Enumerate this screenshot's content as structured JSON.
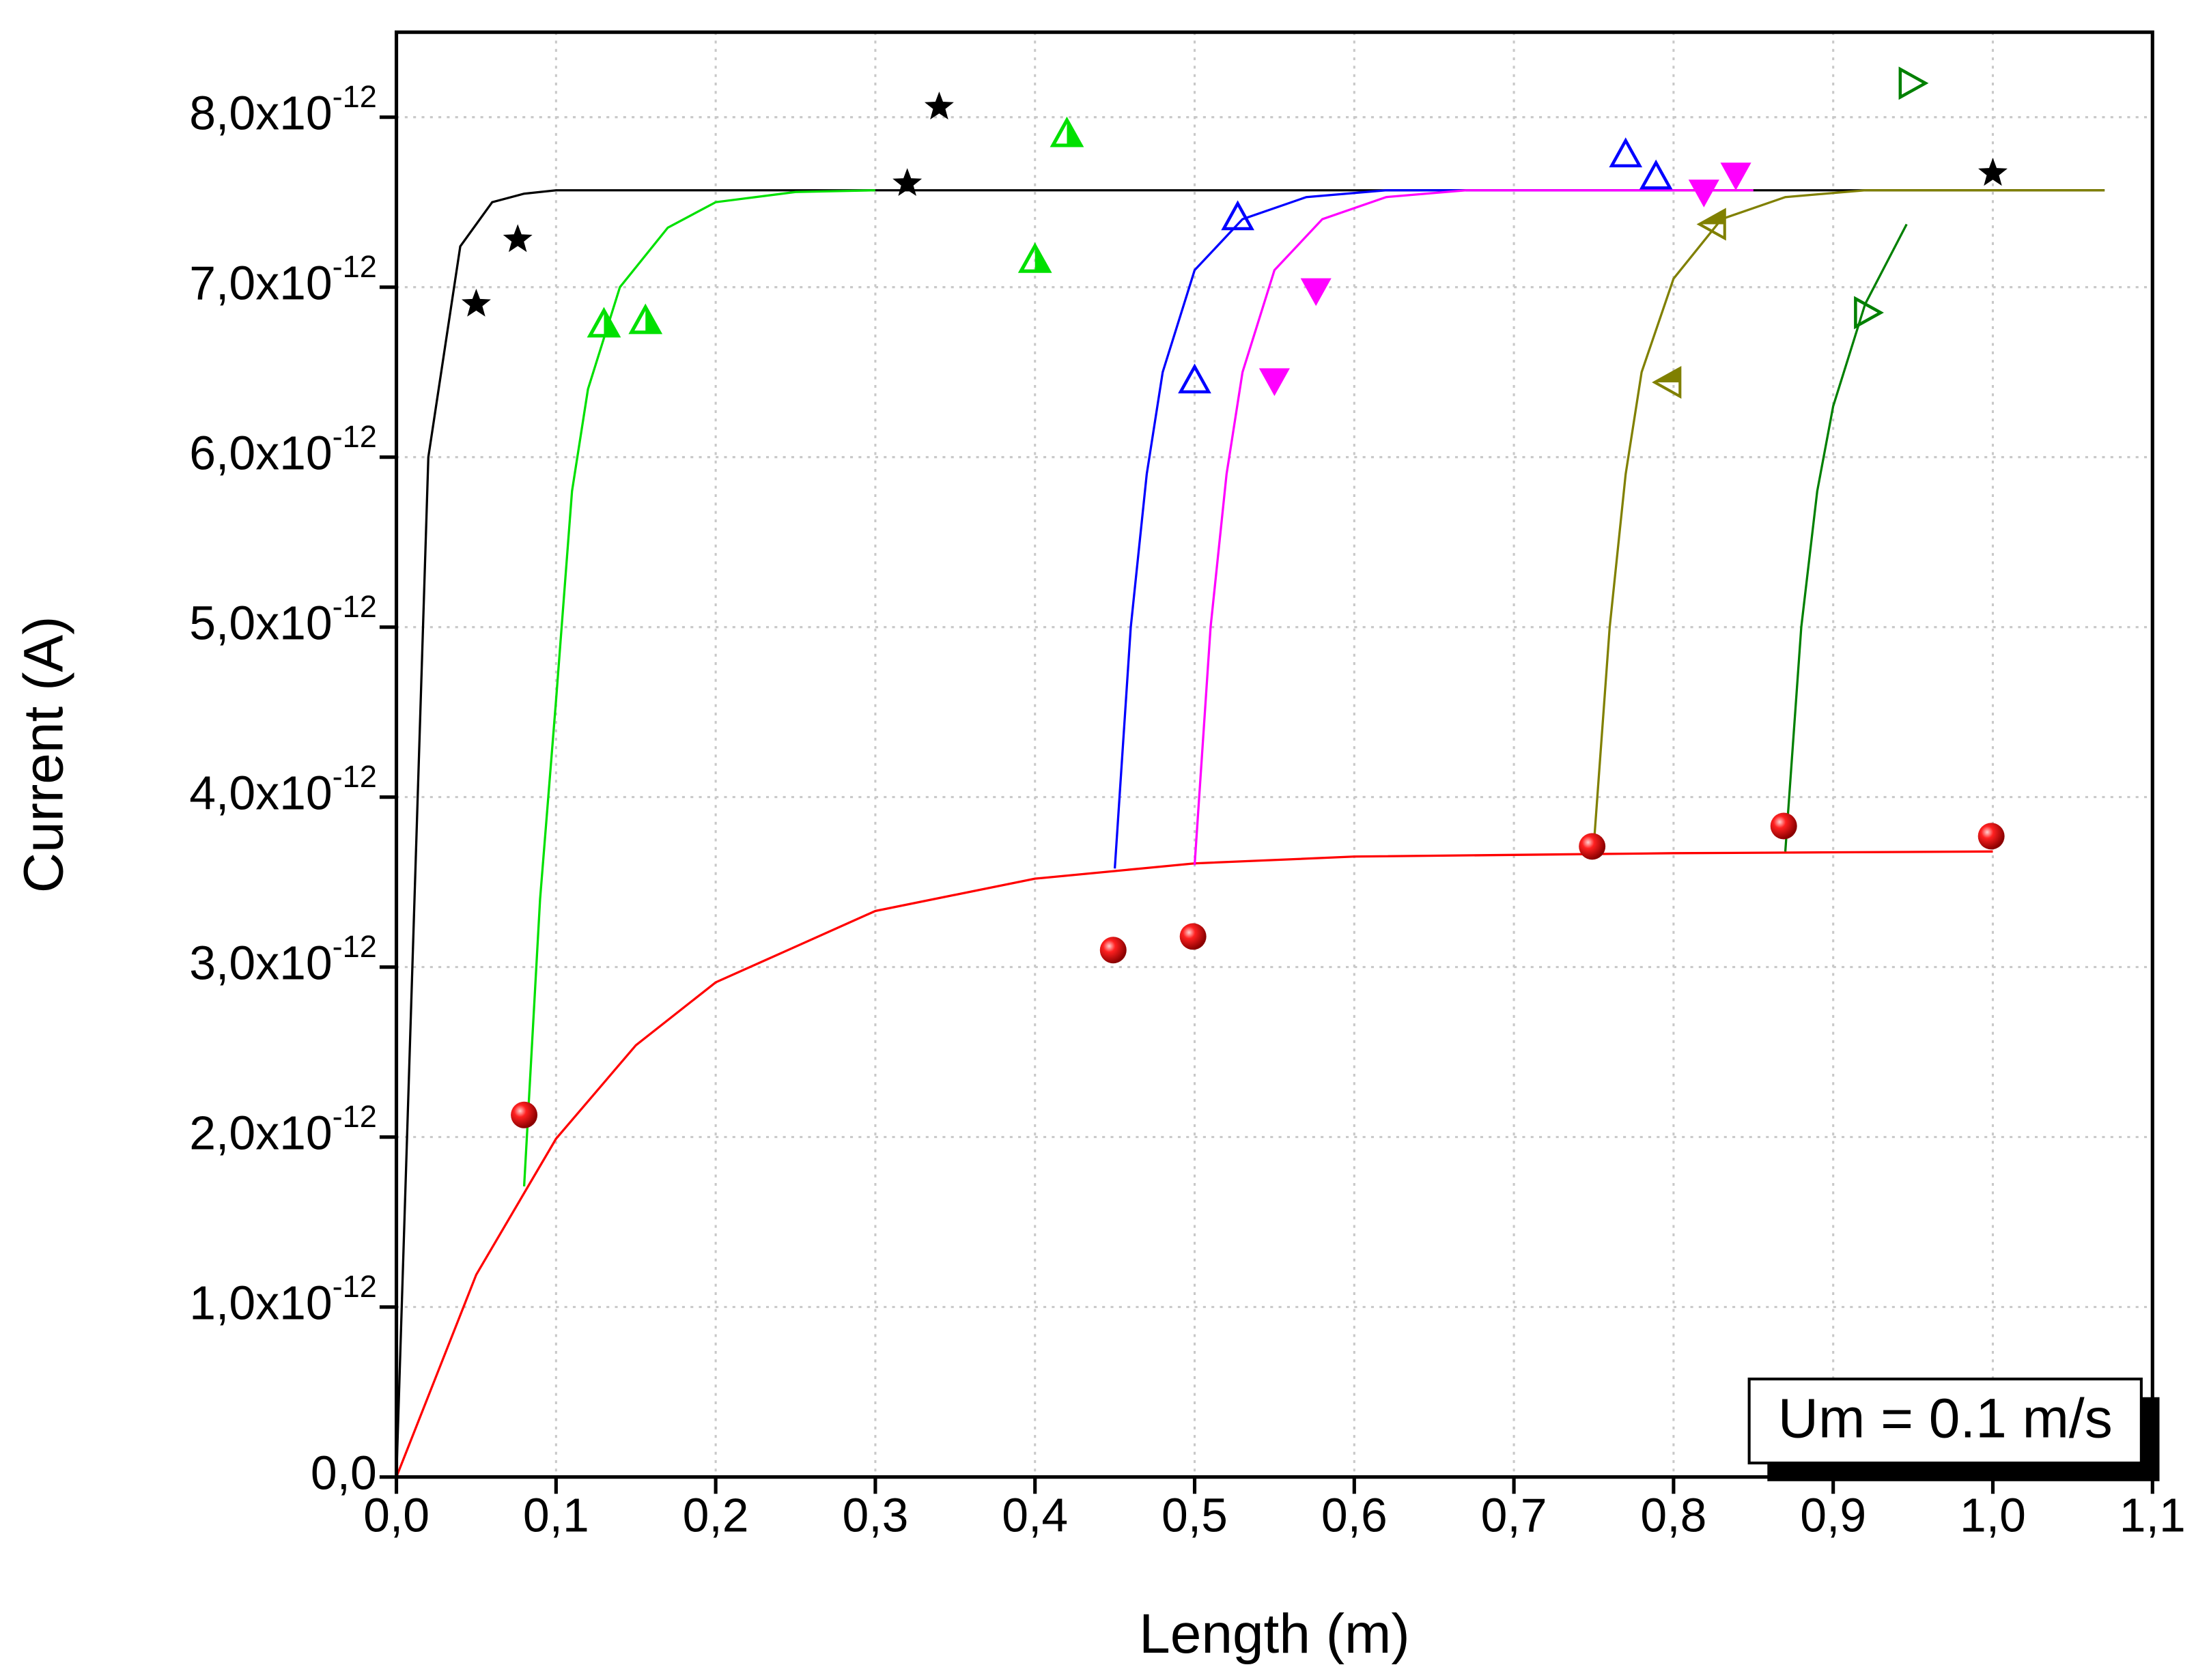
{
  "chart_data": {
    "type": "scatter",
    "xlabel": "Length (m)",
    "ylabel": "Current (A)",
    "annotation": "Um = 0.1 m/s",
    "xlim": [
      0,
      1.1
    ],
    "ylim": [
      0,
      8.5e-12
    ],
    "grid": true,
    "xticks": [
      {
        "value": 0,
        "label": "0,0"
      },
      {
        "value": 0.1,
        "label": "0,1"
      },
      {
        "value": 0.2,
        "label": "0,2"
      },
      {
        "value": 0.3,
        "label": "0,3"
      },
      {
        "value": 0.4,
        "label": "0,4"
      },
      {
        "value": 0.5,
        "label": "0,5"
      },
      {
        "value": 0.6,
        "label": "0,6"
      },
      {
        "value": 0.7,
        "label": "0,7"
      },
      {
        "value": 0.8,
        "label": "0,8"
      },
      {
        "value": 0.9,
        "label": "0,9"
      },
      {
        "value": 1.0,
        "label": "1,0"
      },
      {
        "value": 1.1,
        "label": "1,1"
      }
    ],
    "yticks": [
      {
        "value": 0,
        "label": "0,0"
      },
      {
        "value": 1e-12,
        "label": "1,0x10",
        "exponent": "-12"
      },
      {
        "value": 2e-12,
        "label": "2,0x10",
        "exponent": "-12"
      },
      {
        "value": 3e-12,
        "label": "3,0x10",
        "exponent": "-12"
      },
      {
        "value": 4e-12,
        "label": "4,0x10",
        "exponent": "-12"
      },
      {
        "value": 5e-12,
        "label": "5,0x10",
        "exponent": "-12"
      },
      {
        "value": 6e-12,
        "label": "6,0x10",
        "exponent": "-12"
      },
      {
        "value": 7e-12,
        "label": "7,0x10",
        "exponent": "-12"
      },
      {
        "value": 8e-12,
        "label": "8,0x10",
        "exponent": "-12"
      }
    ],
    "series": [
      {
        "color": "#000000",
        "marker": "star",
        "x": [
          0.05,
          0.076,
          0.32,
          0.34,
          1.0
        ],
        "values": [
          6.9e-12,
          7.28e-12,
          7.61e-12,
          8.06e-12,
          7.67e-12
        ]
      },
      {
        "color": "#00e000",
        "marker": "triangle-half",
        "x": [
          0.13,
          0.156,
          0.4,
          0.42
        ],
        "values": [
          6.78e-12,
          6.8e-12,
          7.16e-12,
          7.9e-12
        ]
      },
      {
        "color": "#0000ff",
        "marker": "triangle-open",
        "x": [
          0.5,
          0.527,
          0.77,
          0.789
        ],
        "values": [
          6.45e-12,
          7.41e-12,
          7.78e-12,
          7.65e-12
        ]
      },
      {
        "color": "#ff00ff",
        "marker": "triangle-down",
        "x": [
          0.55,
          0.576,
          0.819,
          0.839
        ],
        "values": [
          6.45e-12,
          6.98e-12,
          7.56e-12,
          7.66e-12
        ]
      },
      {
        "color": "#808000",
        "marker": "triangle-left",
        "x": [
          0.797,
          0.825
        ],
        "values": [
          6.44e-12,
          7.37e-12
        ]
      },
      {
        "color": "#008000",
        "marker": "triangle-right-open",
        "x": [
          0.921,
          0.949
        ],
        "values": [
          6.85e-12,
          8.2e-12
        ]
      },
      {
        "color": "#ff0000",
        "marker": "sphere",
        "x": [
          0.08,
          0.449,
          0.499,
          0.749,
          0.869,
          0.999
        ],
        "values": [
          2.13e-12,
          3.1e-12,
          3.18e-12,
          3.71e-12,
          3.83e-12,
          3.77e-12
        ]
      }
    ],
    "lines": [
      {
        "color": "#ff0000",
        "x": [
          0,
          0.05,
          0.1,
          0.15,
          0.2,
          0.3,
          0.4,
          0.5,
          0.6,
          0.8,
          1.0
        ],
        "values": [
          0,
          1.19e-12,
          1.99e-12,
          2.54e-12,
          2.91e-12,
          3.33e-12,
          3.52e-12,
          3.61e-12,
          3.65e-12,
          3.67e-12,
          3.68e-12
        ]
      },
      {
        "color": "#000000",
        "x": [
          0,
          0.02,
          0.04,
          0.06,
          0.08,
          0.1,
          1.07
        ],
        "values": [
          0,
          6e-12,
          7.24e-12,
          7.5e-12,
          7.55e-12,
          7.57e-12,
          7.57e-12
        ]
      },
      {
        "color": "#00e000",
        "x": [
          0.08,
          0.09,
          0.1,
          0.11,
          0.12,
          0.14,
          0.17,
          0.2,
          0.25,
          0.3
        ],
        "values": [
          1.71e-12,
          3.4e-12,
          4.57e-12,
          5.8e-12,
          6.4e-12,
          7e-12,
          7.35e-12,
          7.5e-12,
          7.56e-12,
          7.57e-12
        ]
      },
      {
        "color": "#0000ff",
        "x": [
          0.45,
          0.46,
          0.47,
          0.48,
          0.5,
          0.53,
          0.57,
          0.62,
          0.8
        ],
        "values": [
          3.58e-12,
          5e-12,
          5.9e-12,
          6.5e-12,
          7.1e-12,
          7.4e-12,
          7.53e-12,
          7.57e-12,
          7.57e-12
        ]
      },
      {
        "color": "#ff00ff",
        "x": [
          0.5,
          0.51,
          0.52,
          0.53,
          0.55,
          0.58,
          0.62,
          0.67,
          0.85
        ],
        "values": [
          3.6e-12,
          5e-12,
          5.9e-12,
          6.5e-12,
          7.1e-12,
          7.4e-12,
          7.53e-12,
          7.57e-12,
          7.57e-12
        ]
      },
      {
        "color": "#808000",
        "x": [
          0.75,
          0.76,
          0.77,
          0.78,
          0.8,
          0.83,
          0.87,
          0.92,
          1.07
        ],
        "values": [
          3.71e-12,
          5e-12,
          5.9e-12,
          6.5e-12,
          7.05e-12,
          7.4e-12,
          7.53e-12,
          7.57e-12,
          7.57e-12
        ]
      },
      {
        "color": "#008000",
        "x": [
          0.87,
          0.88,
          0.89,
          0.9,
          0.92,
          0.946
        ],
        "values": [
          3.68e-12,
          5e-12,
          5.8e-12,
          6.3e-12,
          6.9e-12,
          7.37e-12
        ]
      }
    ]
  }
}
